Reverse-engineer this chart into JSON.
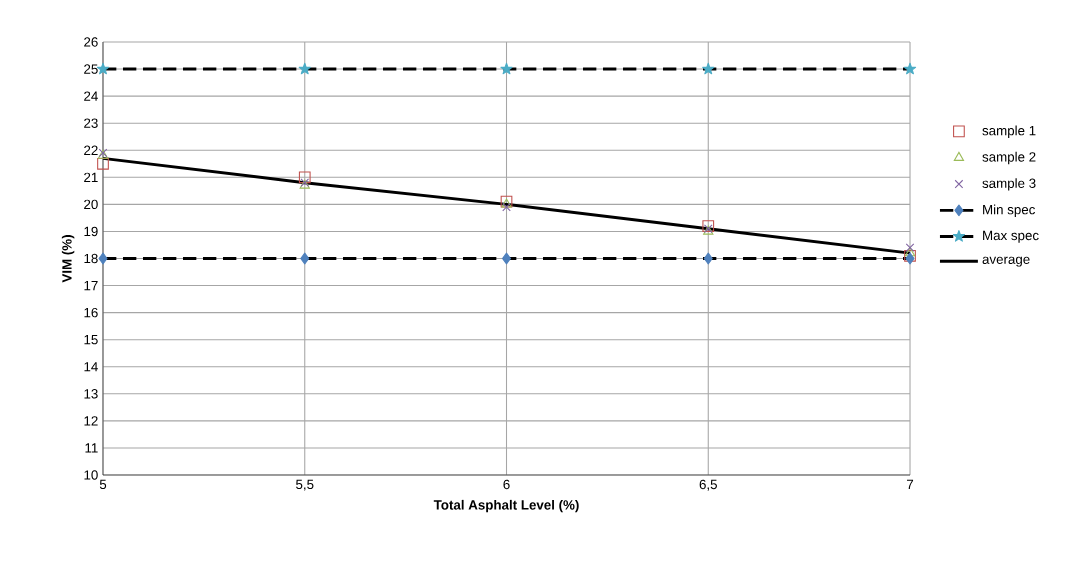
{
  "chart_data": {
    "type": "scatter",
    "xlabel": "Total Asphalt Level (%)",
    "ylabel": "VIM (%)",
    "x": [
      5,
      5.5,
      6,
      6.5,
      7
    ],
    "xlim": [
      5,
      7
    ],
    "xticks": [
      5,
      {
        "value": 5.5,
        "label": "5,5"
      },
      6,
      {
        "value": 6.5,
        "label": "6,5"
      },
      7
    ],
    "ylim": [
      10,
      26
    ],
    "yticks": [
      10,
      11,
      12,
      13,
      14,
      15,
      16,
      17,
      18,
      19,
      20,
      21,
      22,
      23,
      24,
      25,
      26
    ],
    "grid": true,
    "legend": "right",
    "series": [
      {
        "name": "sample 1",
        "color": "#c0504d",
        "marker": "square",
        "values": [
          21.5,
          21.0,
          20.1,
          19.2,
          18.1
        ]
      },
      {
        "name": "sample 2",
        "color": "#9bbb59",
        "marker": "triangle",
        "values": [
          21.8,
          20.7,
          20.0,
          19.0,
          18.2
        ]
      },
      {
        "name": "sample 3",
        "color": "#8064a2",
        "marker": "cross",
        "values": [
          21.9,
          20.8,
          19.9,
          19.1,
          18.4
        ]
      },
      {
        "name": "Min spec",
        "type": "line",
        "color": "#4f81bd",
        "line_style": "dashed",
        "marker": "diamond",
        "values": [
          18,
          18,
          18,
          18,
          18
        ]
      },
      {
        "name": "Max spec",
        "type": "line",
        "color": "#4bacc6",
        "line_style": "dashed",
        "marker": "star",
        "values": [
          25,
          25,
          25,
          25,
          25
        ]
      },
      {
        "name": "average",
        "type": "line",
        "color": "#000000",
        "line_style": "solid",
        "marker": "none",
        "values": [
          21.7,
          20.8,
          20.0,
          19.1,
          18.2
        ]
      }
    ]
  }
}
